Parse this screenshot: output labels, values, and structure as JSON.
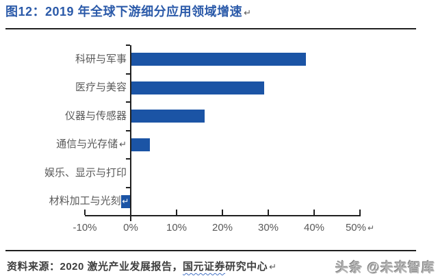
{
  "title": {
    "text": "图12：2019 年全球下游细分应用领域增速",
    "return_mark": "↵"
  },
  "return_glyph": "↵",
  "chart_data": {
    "type": "bar",
    "orientation": "horizontal",
    "title": "2019 年全球下游细分应用领域增速",
    "categories": [
      "科研与军事",
      "医疗与美容",
      "仪器与传感器",
      "通信与光存储",
      "娱乐、显示与打印",
      "材料加工与光刻"
    ],
    "values": [
      38,
      29,
      16,
      4,
      0,
      -2
    ],
    "value_unit": "%",
    "xlim": [
      -10,
      50
    ],
    "x_tick_values": [
      -10,
      0,
      10,
      20,
      30,
      40,
      50
    ],
    "x_tick_labels": [
      "-10%",
      "0%",
      "10%",
      "20%",
      "30%",
      "40%",
      "50%"
    ],
    "x_axis_return_mark": true,
    "category_return_marks": [
      "none",
      "none",
      "none",
      "after",
      "none",
      "inside"
    ],
    "grid": false,
    "legend": null,
    "bar_color": "#1b54a5",
    "axis_color": "#1f1f1f",
    "tick_label_color": "#595959"
  },
  "footer": {
    "source_prefix": "资料来源：2020 激光产业发展报告，",
    "source_underlined": "国元证券",
    "source_suffix": "研究中心",
    "return_mark": "↵",
    "watermark": "头条 @未来智库"
  },
  "colors": {
    "title_blue": "#2b5aa9",
    "bar_blue": "#1b54a5",
    "rule_dark": "#1f1f1f",
    "label_gray": "#595959",
    "source_gray": "#3d3d3d",
    "squiggle_blue": "#4472c4",
    "watermark_gray": "#b5b5b5"
  }
}
